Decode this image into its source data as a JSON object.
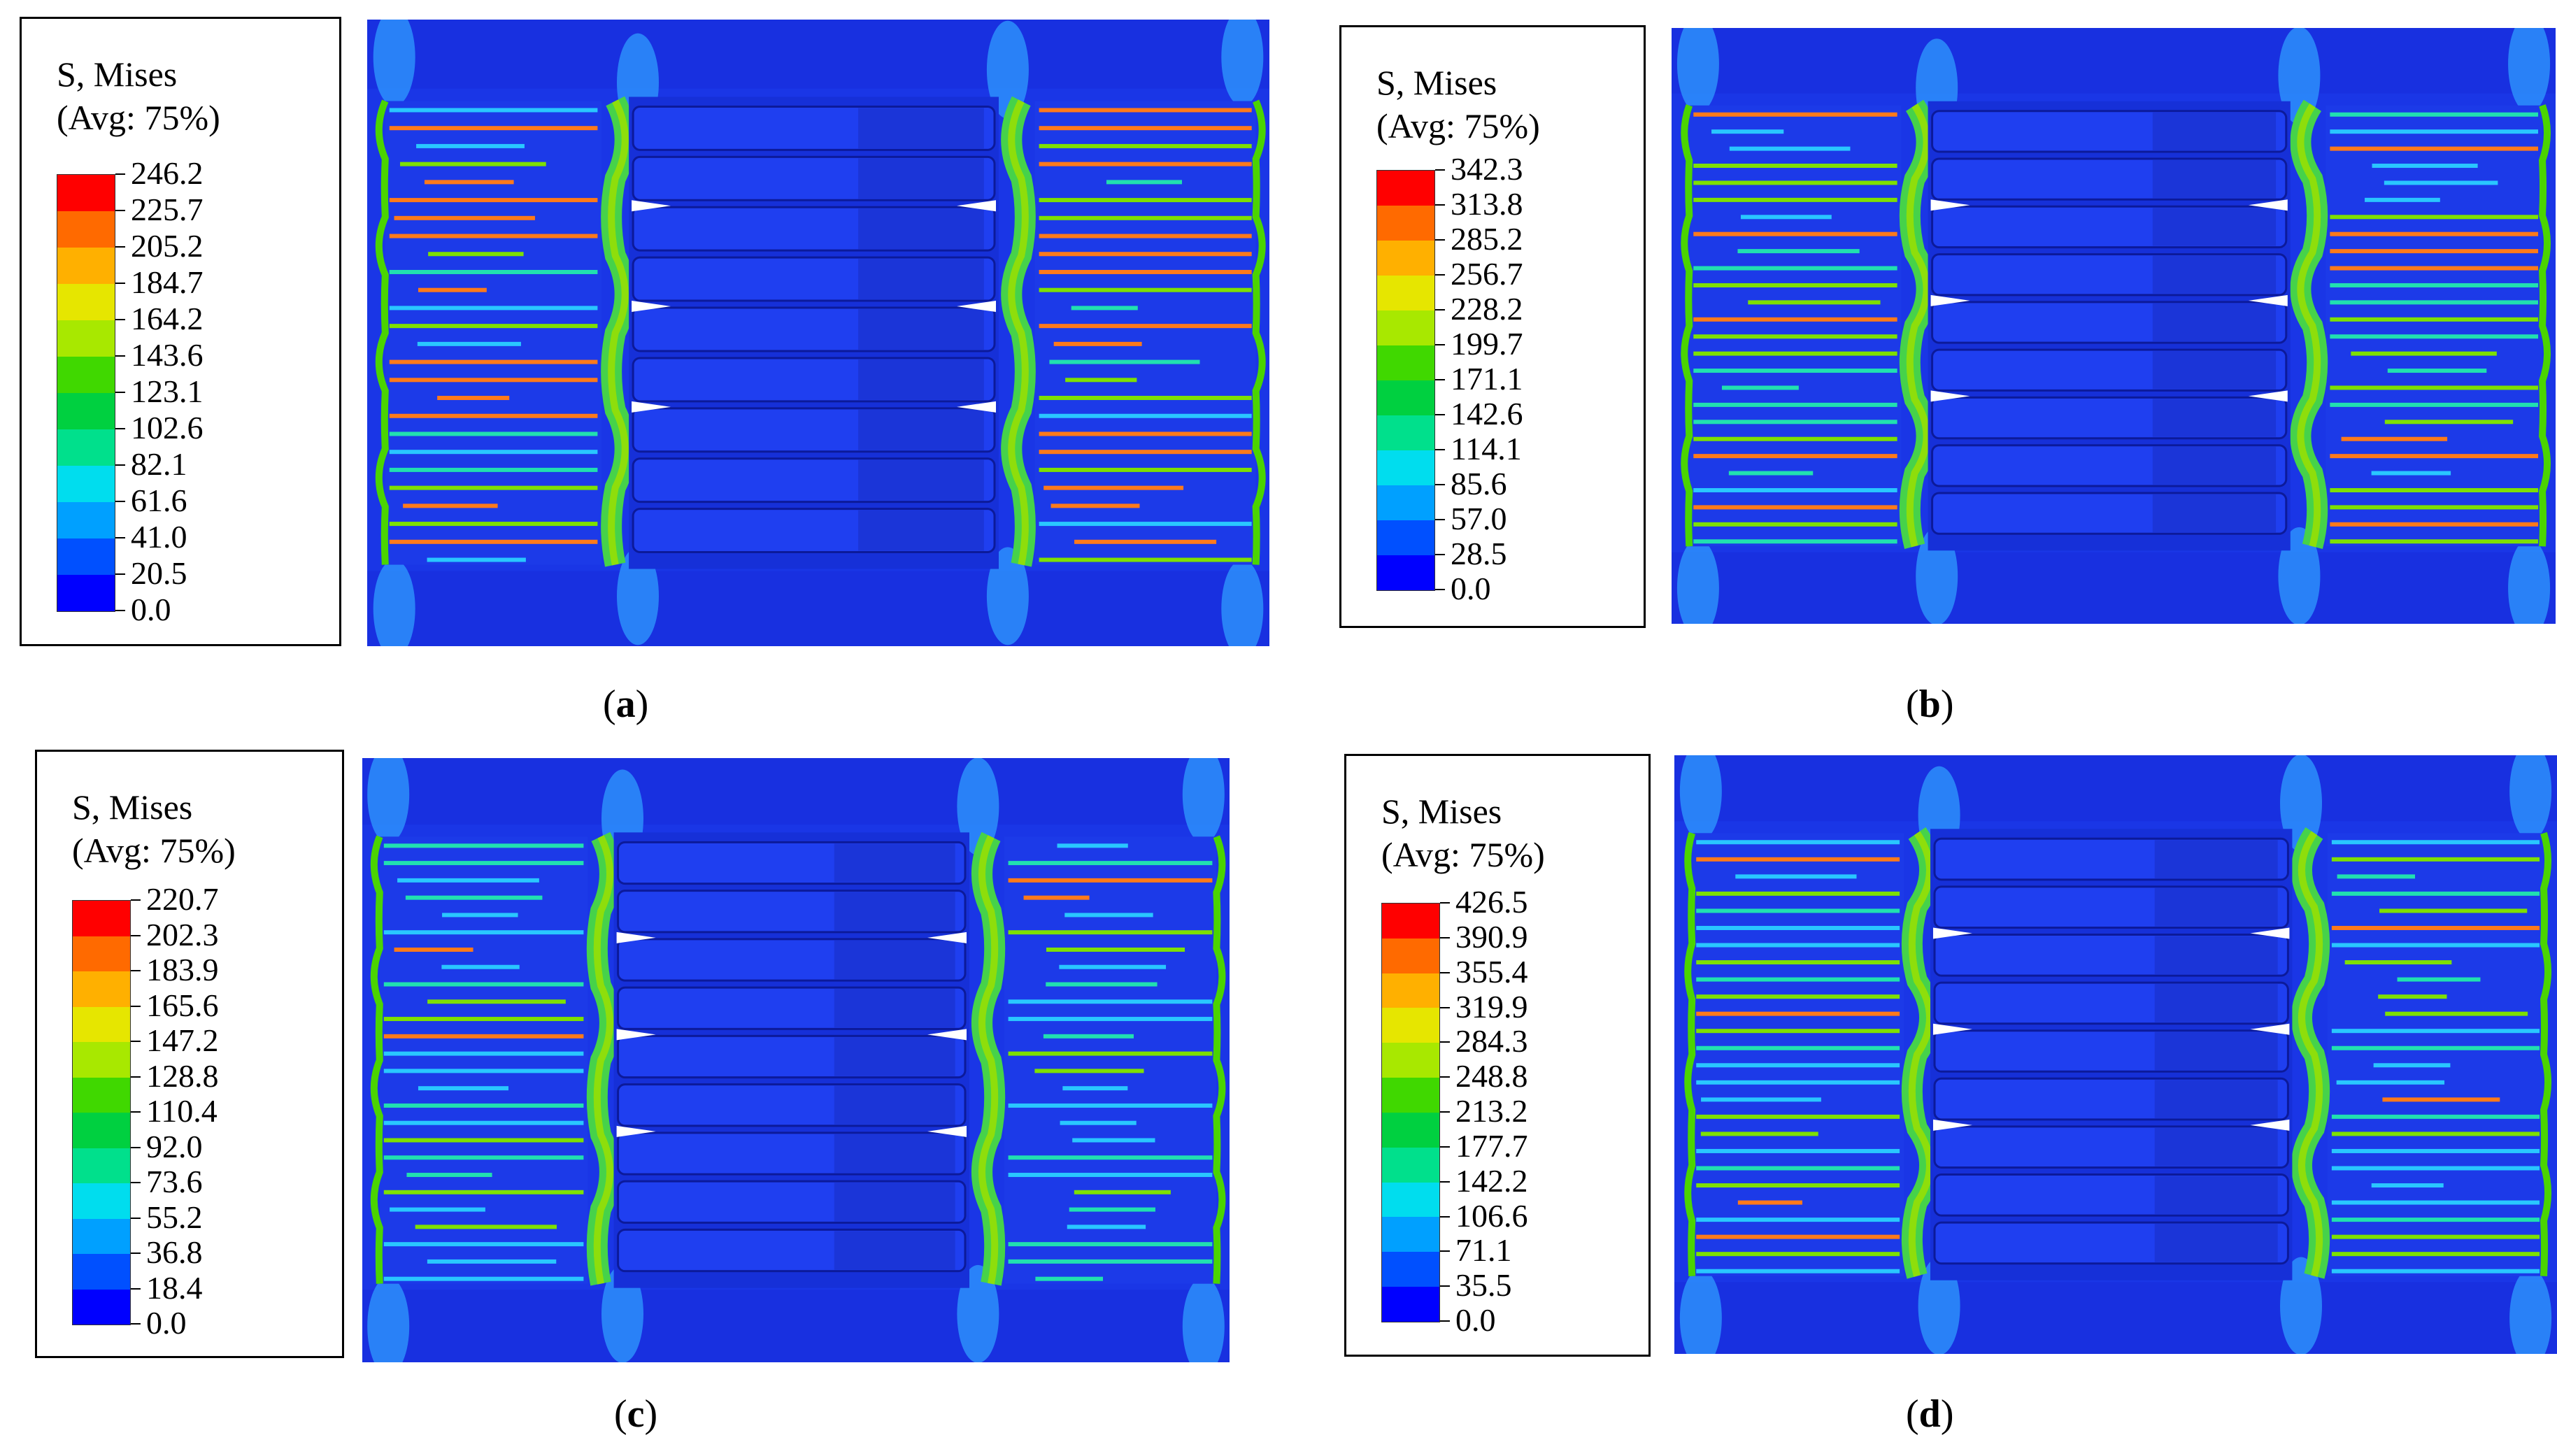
{
  "colors": {
    "scale": [
      "#0000ff",
      "#0050ff",
      "#00a0ff",
      "#00ddee",
      "#00e08c",
      "#00d040",
      "#40d800",
      "#a8e800",
      "#e6e600",
      "#ffb000",
      "#ff6a00",
      "#ff0000"
    ],
    "background_blue": "#1530e0",
    "figure_text": "#000000"
  },
  "panels": [
    {
      "id": "a",
      "legend": {
        "title_line1": "S, Mises",
        "title_line2": "(Avg: 75%)",
        "values": [
          "246.2",
          "225.7",
          "205.2",
          "184.7",
          "164.2",
          "143.6",
          "123.1",
          "102.6",
          "82.1",
          "61.6",
          "41.0",
          "20.5",
          "0.0"
        ]
      },
      "caption": {
        "open": "(",
        "letter": "a",
        "close": ")"
      }
    },
    {
      "id": "b",
      "legend": {
        "title_line1": "S, Mises",
        "title_line2": "(Avg: 75%)",
        "values": [
          "342.3",
          "313.8",
          "285.2",
          "256.7",
          "228.2",
          "199.7",
          "171.1",
          "142.6",
          "114.1",
          "85.6",
          "57.0",
          "28.5",
          "0.0"
        ]
      },
      "caption": {
        "open": "(",
        "letter": "b",
        "close": ")"
      }
    },
    {
      "id": "c",
      "legend": {
        "title_line1": "S, Mises",
        "title_line2": "(Avg: 75%)",
        "values": [
          "220.7",
          "202.3",
          "183.9",
          "165.6",
          "147.2",
          "128.8",
          "110.4",
          "92.0",
          "73.6",
          "55.2",
          "36.8",
          "18.4",
          "0.0"
        ]
      },
      "caption": {
        "open": "(",
        "letter": "c",
        "close": ")"
      }
    },
    {
      "id": "d",
      "legend": {
        "title_line1": "S, Mises",
        "title_line2": "(Avg: 75%)",
        "values": [
          "426.5",
          "390.9",
          "355.4",
          "319.9",
          "284.3",
          "248.8",
          "213.2",
          "177.7",
          "142.2",
          "106.6",
          "71.1",
          "35.5",
          "0.0"
        ]
      },
      "caption": {
        "open": "(",
        "letter": "d",
        "close": ")"
      }
    }
  ]
}
